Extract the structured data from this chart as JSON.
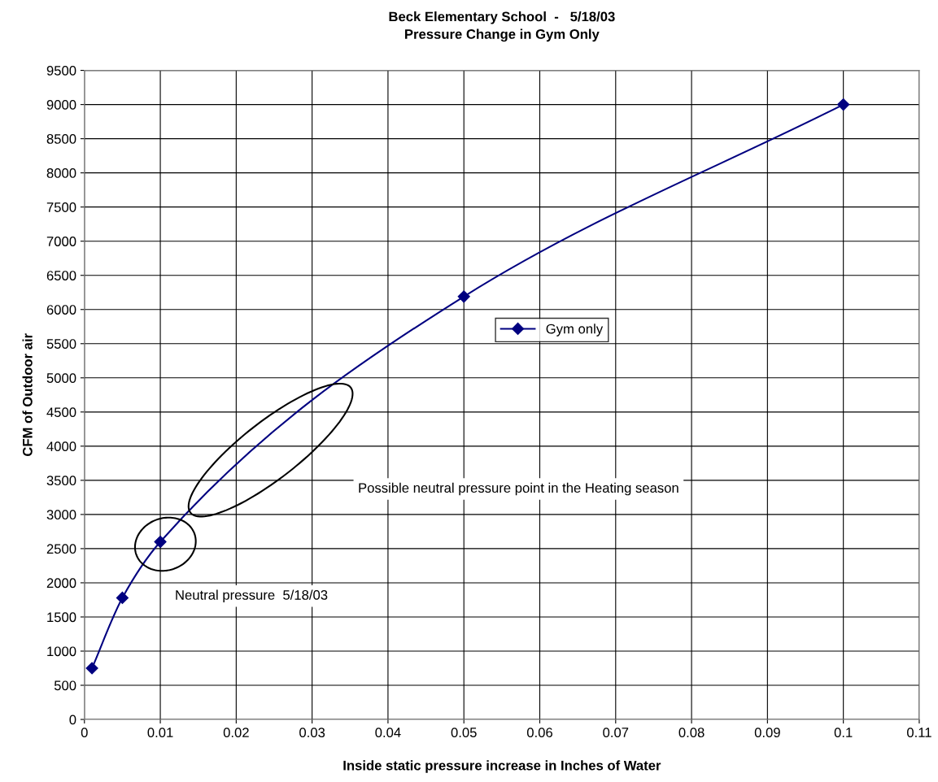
{
  "chart_data": {
    "type": "line",
    "title": "Beck Elementary School  -   5/18/03\nPressure Change in Gym Only",
    "xlabel": "Inside static pressure increase in Inches of Water",
    "ylabel": "CFM of Outdoor air",
    "x": [
      0.001,
      0.005,
      0.01,
      0.05,
      0.1
    ],
    "series": [
      {
        "name": "Gym only",
        "color": "#000080",
        "values": [
          750,
          1780,
          2600,
          6190,
          9000
        ]
      }
    ],
    "xlim": [
      0,
      0.11
    ],
    "xticks": [
      0,
      0.01,
      0.02,
      0.03,
      0.04,
      0.05,
      0.06,
      0.07,
      0.08,
      0.09,
      0.1,
      0.11
    ],
    "ylim": [
      0,
      9500
    ],
    "yticks": [
      0,
      500,
      1000,
      1500,
      2000,
      2500,
      3000,
      3500,
      4000,
      4500,
      5000,
      5500,
      6000,
      6500,
      7000,
      7500,
      8000,
      8500,
      9000,
      9500
    ],
    "annotations": [
      "Neutral pressure  5/18/03",
      "Possible neutral pressure point in the Heating season"
    ],
    "grid": true,
    "legend": "center",
    "marker": "diamond",
    "line_style": "solid"
  }
}
